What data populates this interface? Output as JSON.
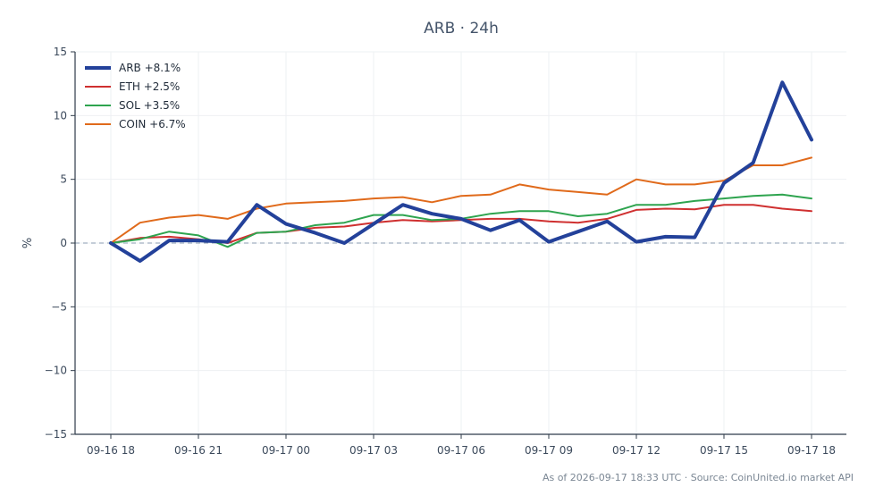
{
  "chart_data": {
    "type": "line",
    "title": "ARB · 24h",
    "ylabel": "%",
    "ylim": [
      -15,
      15
    ],
    "yticks": [
      15,
      10,
      5,
      0,
      -5,
      -10,
      -15
    ],
    "ytick_labels": [
      "15",
      "10",
      "5",
      "0",
      "−5",
      "−10",
      "−15"
    ],
    "xticks": [
      0,
      3,
      6,
      9,
      12,
      15,
      18,
      21,
      24
    ],
    "xtick_labels": [
      "09-16 18",
      "09-16 21",
      "09-17 00",
      "09-17 03",
      "09-17 06",
      "09-17 09",
      "09-17 12",
      "09-17 15",
      "09-17 18"
    ],
    "grid": true,
    "zero_line": true,
    "legend_position": "top-left",
    "x": [
      0,
      1,
      2,
      3,
      4,
      5,
      6,
      7,
      8,
      9,
      10,
      11,
      12,
      13,
      14,
      15,
      16,
      17,
      18,
      19,
      20,
      21,
      22,
      23,
      24
    ],
    "series": [
      {
        "name": "ARB +8.1%",
        "color": "#23419a",
        "width": 4,
        "values": [
          0,
          -1.4,
          0.2,
          0.2,
          0.1,
          3.0,
          1.5,
          0.8,
          0.0,
          1.5,
          3.0,
          2.3,
          1.9,
          1.0,
          1.8,
          0.1,
          0.9,
          1.7,
          0.1,
          0.5,
          0.45,
          4.7,
          6.3,
          12.6,
          8.1
        ]
      },
      {
        "name": "ETH +2.5%",
        "color": "#cf3030",
        "width": 2,
        "values": [
          0,
          0.4,
          0.5,
          0.3,
          0.0,
          0.8,
          0.9,
          1.2,
          1.3,
          1.6,
          1.8,
          1.7,
          1.8,
          1.9,
          1.9,
          1.7,
          1.6,
          1.9,
          2.6,
          2.7,
          2.65,
          3.0,
          3.0,
          2.7,
          2.5
        ]
      },
      {
        "name": "SOL +3.5%",
        "color": "#2ea44f",
        "width": 2,
        "values": [
          0,
          0.3,
          0.9,
          0.6,
          -0.3,
          0.8,
          0.9,
          1.4,
          1.6,
          2.2,
          2.2,
          1.8,
          1.9,
          2.3,
          2.5,
          2.5,
          2.1,
          2.3,
          3.0,
          3.0,
          3.3,
          3.5,
          3.7,
          3.8,
          3.5
        ]
      },
      {
        "name": "COIN +6.7%",
        "color": "#e06a1b",
        "width": 2,
        "values": [
          0,
          1.6,
          2.0,
          2.2,
          1.9,
          2.7,
          3.1,
          3.2,
          3.3,
          3.5,
          3.6,
          3.2,
          3.7,
          3.8,
          4.6,
          4.2,
          4.0,
          3.8,
          5.0,
          4.6,
          4.6,
          4.9,
          6.1,
          6.1,
          6.7
        ]
      }
    ],
    "footer": "As of 2026-09-17 18:33 UTC · Source: CoinUnited.io market API"
  }
}
